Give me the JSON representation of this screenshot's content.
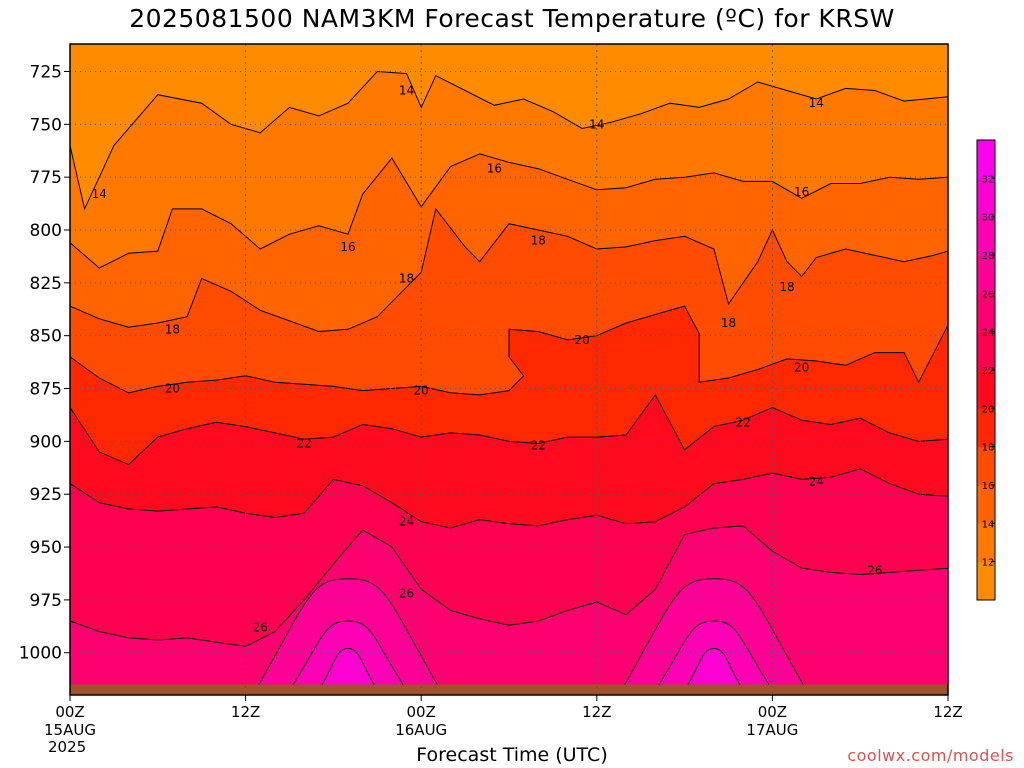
{
  "title": "2025081500 NAM3KM Forecast Temperature (ºC) for KRSW",
  "xlabel": "Forecast Time (UTC)",
  "credit": "coolwx.com/models",
  "year": "2025",
  "colors": {
    "ground": "#a0522d",
    "contour_line": "#000000",
    "grid": "#555555"
  },
  "chart_data": {
    "type": "heatmap",
    "title": "2025081500 NAM3KM Forecast Temperature (ºC) for KRSW",
    "xlabel": "Forecast Time (UTC)",
    "ylabel": "",
    "x_hours_range": [
      0,
      60
    ],
    "y_pressure_range": [
      1020,
      712
    ],
    "y_ticks": [
      "725",
      "750",
      "775",
      "800",
      "825",
      "850",
      "875",
      "900",
      "925",
      "950",
      "975",
      "1000"
    ],
    "x_ticks": [
      {
        "hour": 0,
        "line1": "00Z",
        "line2": "15AUG"
      },
      {
        "hour": 12,
        "line1": "12Z",
        "line2": ""
      },
      {
        "hour": 24,
        "line1": "00Z",
        "line2": "16AUG"
      },
      {
        "hour": 36,
        "line1": "12Z",
        "line2": ""
      },
      {
        "hour": 48,
        "line1": "00Z",
        "line2": "17AUG"
      },
      {
        "hour": 60,
        "line1": "12Z",
        "line2": ""
      }
    ],
    "surface_pressure": 1015,
    "colorbar": {
      "labels": [
        "12",
        "14",
        "16",
        "18",
        "20",
        "22",
        "24",
        "26",
        "28",
        "30",
        "32"
      ],
      "colors": [
        "#ff8c00",
        "#ff7800",
        "#ff6400",
        "#ff4c00",
        "#ff2800",
        "#ff0a1e",
        "#ff0050",
        "#ff0070",
        "#ff0096",
        "#ff00b4",
        "#ff00d2",
        "#ff00f0"
      ]
    },
    "bands": [
      {
        "temp": 12,
        "color": "#ff8c00"
      },
      {
        "temp": 14,
        "color": "#ff7800"
      },
      {
        "temp": 16,
        "color": "#ff6400"
      },
      {
        "temp": 18,
        "color": "#ff4c00"
      },
      {
        "temp": 20,
        "color": "#ff2800"
      },
      {
        "temp": 22,
        "color": "#ff0a1e"
      },
      {
        "temp": 24,
        "color": "#ff0050"
      },
      {
        "temp": 26,
        "color": "#ff0070"
      },
      {
        "temp": 28,
        "color": "#ff0096"
      },
      {
        "temp": 30,
        "color": "#ff00b4"
      },
      {
        "temp": 32,
        "color": "#ff00d2"
      }
    ],
    "contours": [
      {
        "temp": 14,
        "points": [
          [
            0,
            760
          ],
          [
            1,
            790
          ],
          [
            3,
            760
          ],
          [
            6,
            736
          ],
          [
            9,
            740
          ],
          [
            11,
            750
          ],
          [
            13,
            754
          ],
          [
            15,
            742
          ],
          [
            17,
            746
          ],
          [
            19,
            740
          ],
          [
            21,
            725
          ],
          [
            23,
            726
          ],
          [
            24,
            742
          ],
          [
            25,
            727
          ],
          [
            27,
            734
          ],
          [
            29,
            741
          ],
          [
            31,
            738
          ],
          [
            33,
            744
          ],
          [
            35,
            752
          ],
          [
            37,
            749
          ],
          [
            39,
            745
          ],
          [
            41,
            740
          ],
          [
            43,
            742
          ],
          [
            45,
            738
          ],
          [
            47,
            730
          ],
          [
            49,
            734
          ],
          [
            51,
            738
          ],
          [
            53,
            733
          ],
          [
            55,
            734
          ],
          [
            57,
            739
          ],
          [
            60,
            737
          ]
        ],
        "labels": [
          [
            2,
            783,
            "14"
          ],
          [
            23,
            734,
            "14"
          ],
          [
            36,
            750,
            "14"
          ],
          [
            51,
            740,
            "14"
          ]
        ]
      },
      {
        "temp": 16,
        "points": [
          [
            0,
            806
          ],
          [
            2,
            818
          ],
          [
            4,
            811
          ],
          [
            6,
            810
          ],
          [
            7,
            790
          ],
          [
            9,
            790
          ],
          [
            11,
            797
          ],
          [
            13,
            809
          ],
          [
            15,
            802
          ],
          [
            17,
            798
          ],
          [
            19,
            802
          ],
          [
            20,
            783
          ],
          [
            22,
            766
          ],
          [
            24,
            789
          ],
          [
            26,
            770
          ],
          [
            28,
            764
          ],
          [
            30,
            768
          ],
          [
            32,
            771
          ],
          [
            34,
            776
          ],
          [
            36,
            781
          ],
          [
            38,
            780
          ],
          [
            40,
            776
          ],
          [
            42,
            775
          ],
          [
            44,
            773
          ],
          [
            46,
            777
          ],
          [
            48,
            777
          ],
          [
            50,
            785
          ],
          [
            52,
            778
          ],
          [
            54,
            778
          ],
          [
            56,
            775
          ],
          [
            58,
            776
          ],
          [
            60,
            775
          ]
        ],
        "labels": [
          [
            19,
            808,
            "16"
          ],
          [
            29,
            771,
            "16"
          ],
          [
            50,
            782,
            "16"
          ]
        ]
      },
      {
        "temp": 18,
        "points": [
          [
            0,
            836
          ],
          [
            2,
            842
          ],
          [
            4,
            846
          ],
          [
            6,
            844
          ],
          [
            8,
            841
          ],
          [
            9,
            823
          ],
          [
            11,
            829
          ],
          [
            13,
            838
          ],
          [
            15,
            843
          ],
          [
            17,
            848
          ],
          [
            19,
            847
          ],
          [
            21,
            841
          ],
          [
            23,
            827
          ],
          [
            24,
            820
          ],
          [
            25,
            790
          ],
          [
            27,
            808
          ],
          [
            28,
            815
          ],
          [
            30,
            797
          ],
          [
            32,
            800
          ],
          [
            34,
            803
          ],
          [
            36,
            809
          ],
          [
            38,
            808
          ],
          [
            40,
            805
          ],
          [
            42,
            803
          ],
          [
            44,
            809
          ],
          [
            45,
            835
          ],
          [
            47,
            815
          ],
          [
            48,
            800
          ],
          [
            49,
            815
          ],
          [
            50,
            822
          ],
          [
            51,
            813
          ],
          [
            53,
            809
          ],
          [
            55,
            812
          ],
          [
            57,
            815
          ],
          [
            59,
            812
          ],
          [
            60,
            810
          ]
        ],
        "labels": [
          [
            7,
            847,
            "18"
          ],
          [
            23,
            823,
            "18"
          ],
          [
            32,
            805,
            "18"
          ],
          [
            45,
            844,
            "18"
          ],
          [
            49,
            827,
            "18"
          ]
        ]
      },
      {
        "temp": 20,
        "points": [
          [
            0,
            860
          ],
          [
            2,
            870
          ],
          [
            4,
            877
          ],
          [
            6,
            874
          ],
          [
            8,
            872
          ],
          [
            10,
            871
          ],
          [
            12,
            869
          ],
          [
            14,
            872
          ],
          [
            16,
            873
          ],
          [
            18,
            874
          ],
          [
            20,
            876
          ],
          [
            22,
            875
          ],
          [
            24,
            874
          ],
          [
            26,
            877
          ],
          [
            28,
            878
          ],
          [
            30,
            876
          ],
          [
            31,
            869
          ],
          [
            30,
            860
          ],
          [
            30,
            847
          ],
          [
            32,
            848
          ],
          [
            34,
            852
          ],
          [
            36,
            850
          ],
          [
            38,
            844
          ],
          [
            40,
            840
          ],
          [
            42,
            836
          ],
          [
            43,
            849
          ],
          [
            43,
            872
          ],
          [
            45,
            870
          ],
          [
            47,
            866
          ],
          [
            49,
            861
          ],
          [
            51,
            862
          ],
          [
            53,
            864
          ],
          [
            55,
            858
          ],
          [
            57,
            858
          ],
          [
            58,
            872
          ],
          [
            60,
            845
          ]
        ],
        "labels": [
          [
            7,
            875,
            "20"
          ],
          [
            24,
            876,
            "20"
          ],
          [
            35,
            852,
            "20"
          ],
          [
            50,
            865,
            "20"
          ]
        ]
      },
      {
        "temp": 22,
        "points": [
          [
            0,
            884
          ],
          [
            2,
            905
          ],
          [
            4,
            911
          ],
          [
            6,
            898
          ],
          [
            8,
            894
          ],
          [
            10,
            891
          ],
          [
            12,
            893
          ],
          [
            14,
            896
          ],
          [
            16,
            899
          ],
          [
            18,
            898
          ],
          [
            20,
            892
          ],
          [
            22,
            894
          ],
          [
            24,
            898
          ],
          [
            26,
            896
          ],
          [
            28,
            897
          ],
          [
            30,
            900
          ],
          [
            32,
            901
          ],
          [
            34,
            898
          ],
          [
            36,
            898
          ],
          [
            38,
            897
          ],
          [
            40,
            878
          ],
          [
            42,
            904
          ],
          [
            44,
            893
          ],
          [
            46,
            890
          ],
          [
            48,
            884
          ],
          [
            50,
            890
          ],
          [
            52,
            892
          ],
          [
            54,
            889
          ],
          [
            56,
            896
          ],
          [
            58,
            900
          ],
          [
            60,
            899
          ]
        ],
        "labels": [
          [
            16,
            901,
            "22"
          ],
          [
            32,
            902,
            "22"
          ],
          [
            46,
            891,
            "22"
          ]
        ]
      },
      {
        "temp": 24,
        "points": [
          [
            0,
            920
          ],
          [
            2,
            929
          ],
          [
            4,
            932
          ],
          [
            6,
            933
          ],
          [
            8,
            932
          ],
          [
            10,
            931
          ],
          [
            12,
            934
          ],
          [
            14,
            936
          ],
          [
            16,
            934
          ],
          [
            18,
            918
          ],
          [
            20,
            921
          ],
          [
            22,
            929
          ],
          [
            24,
            938
          ],
          [
            26,
            941
          ],
          [
            28,
            937
          ],
          [
            30,
            939
          ],
          [
            32,
            940
          ],
          [
            34,
            937
          ],
          [
            36,
            935
          ],
          [
            38,
            939
          ],
          [
            40,
            938
          ],
          [
            42,
            931
          ],
          [
            44,
            920
          ],
          [
            46,
            918
          ],
          [
            48,
            915
          ],
          [
            50,
            918
          ],
          [
            52,
            917
          ],
          [
            54,
            913
          ],
          [
            56,
            920
          ],
          [
            58,
            925
          ],
          [
            60,
            926
          ]
        ],
        "labels": [
          [
            23,
            938,
            "24"
          ],
          [
            51,
            919,
            "24"
          ]
        ]
      },
      {
        "temp": 26,
        "points": [
          [
            0,
            985
          ],
          [
            2,
            990
          ],
          [
            4,
            993
          ],
          [
            6,
            994
          ],
          [
            8,
            993
          ],
          [
            10,
            995
          ],
          [
            12,
            997
          ],
          [
            14,
            990
          ],
          [
            16,
            975
          ],
          [
            18,
            958
          ],
          [
            20,
            942
          ],
          [
            22,
            950
          ],
          [
            24,
            970
          ],
          [
            26,
            980
          ],
          [
            28,
            984
          ],
          [
            30,
            987
          ],
          [
            32,
            985
          ],
          [
            34,
            980
          ],
          [
            36,
            976
          ],
          [
            38,
            982
          ],
          [
            40,
            970
          ],
          [
            42,
            944
          ],
          [
            44,
            941
          ],
          [
            46,
            940
          ],
          [
            48,
            952
          ],
          [
            50,
            960
          ],
          [
            52,
            962
          ],
          [
            54,
            963
          ],
          [
            56,
            962
          ],
          [
            58,
            961
          ],
          [
            60,
            960
          ]
        ],
        "labels": [
          [
            13,
            988,
            "26"
          ],
          [
            23,
            972,
            "26"
          ],
          [
            55,
            961,
            "26"
          ]
        ]
      }
    ],
    "hot_spots": [
      {
        "center_hour": 19,
        "center_p": 1005,
        "temps": [
          28,
          30,
          32
        ]
      },
      {
        "center_hour": 44,
        "center_p": 1003,
        "temps": [
          28,
          30,
          32
        ]
      }
    ]
  }
}
